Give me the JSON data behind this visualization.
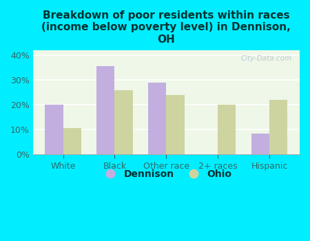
{
  "title": "Breakdown of poor residents within races\n(income below poverty level) in Dennison,\nOH",
  "categories": [
    "White",
    "Black",
    "Other race",
    "2+ races",
    "Hispanic"
  ],
  "dennison_values": [
    20,
    35.5,
    29,
    0,
    8.5
  ],
  "ohio_values": [
    10.5,
    26,
    24,
    20,
    22
  ],
  "dennison_color": "#c3aee0",
  "ohio_color": "#cdd4a0",
  "bg_color": "#00eeff",
  "plot_bg": "#eef7e8",
  "title_color": "#003333",
  "tick_color": "#336666",
  "ylim": [
    0,
    42
  ],
  "yticks": [
    0,
    10,
    20,
    30,
    40
  ],
  "bar_width": 0.35,
  "legend_labels": [
    "Dennison",
    "Ohio"
  ],
  "watermark": "City-Data.com"
}
